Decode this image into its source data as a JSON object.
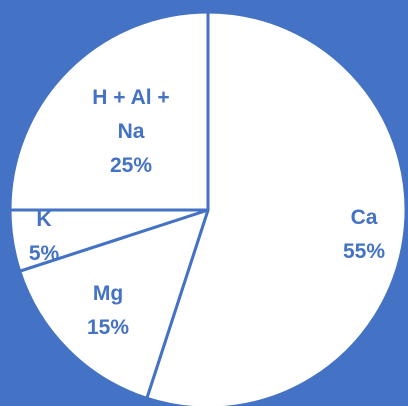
{
  "chart_data": {
    "type": "pie",
    "title": "",
    "legend": "none",
    "start_angle_deg": 0,
    "direction": "clockwise",
    "slices": [
      {
        "label": "Ca",
        "value": 55,
        "value_label": "55%",
        "label_lines": [
          "Ca",
          "55%"
        ]
      },
      {
        "label": "Mg",
        "value": 15,
        "value_label": "15%",
        "label_lines": [
          "Mg",
          "15%"
        ]
      },
      {
        "label": "K",
        "value": 5,
        "value_label": "5%",
        "label_lines": [
          "K",
          "5%"
        ]
      },
      {
        "label": "H + Al + Na",
        "value": 25,
        "value_label": "25%",
        "label_lines": [
          "H + Al +",
          "Na",
          "25%"
        ]
      }
    ],
    "colors": {
      "background": "#4472C4",
      "slice_fill": "#FFFFFF",
      "slice_border": "#4472C4",
      "label_color": "#4472C4"
    }
  }
}
